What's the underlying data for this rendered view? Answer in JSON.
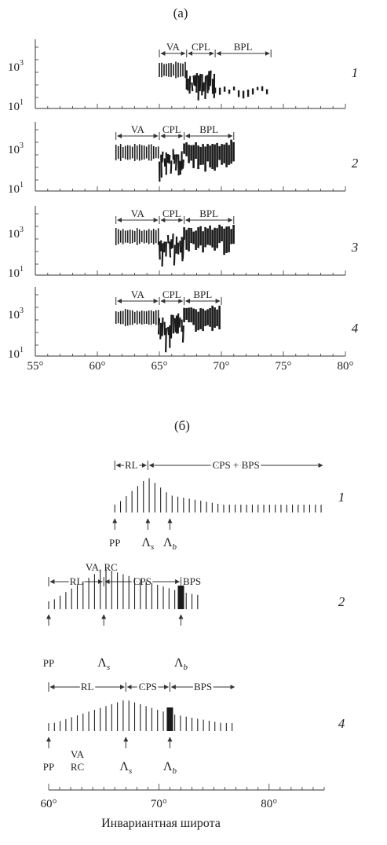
{
  "figure": {
    "panel_a": {
      "label": "(a)",
      "rows": [
        {
          "number": "1",
          "regions": [
            "VA",
            "CPL",
            "BPL"
          ]
        },
        {
          "number": "2",
          "regions": [
            "VA",
            "CPL",
            "BPL"
          ]
        },
        {
          "number": "3",
          "regions": [
            "VA",
            "CPL",
            "BPL"
          ]
        },
        {
          "number": "4",
          "regions": [
            "VA",
            "CPL",
            "BPL"
          ]
        }
      ],
      "y_tick_labels": [
        {
          "base": "10",
          "exp": "3"
        },
        {
          "base": "10",
          "exp": "1"
        }
      ],
      "x_ticks": [
        "55°",
        "60°",
        "65°",
        "70°",
        "75°",
        "80°"
      ]
    },
    "panel_b": {
      "label": "(б)",
      "rows": [
        {
          "number": "1",
          "top_labels": [
            "RL",
            "CPS + BPS"
          ],
          "markers": [
            "PP",
            "Λs",
            "Λb"
          ]
        },
        {
          "number": "2",
          "top_labels": [
            "VA, RC",
            "RL",
            "CPS",
            "BPS"
          ],
          "markers": [
            "PP",
            "Λs",
            "Λb"
          ]
        },
        {
          "number": "4",
          "top_labels": [
            "RL",
            "CPS",
            "BPS"
          ],
          "markers": [
            "PP",
            "VA",
            "RC",
            "Λs",
            "Λb"
          ]
        }
      ],
      "x_ticks": [
        "60°",
        "70°",
        "80°"
      ],
      "x_axis_label": "Инвариантная широта"
    }
  },
  "chart_data": [
    {
      "type": "other",
      "panel": "(a)",
      "description_source": "precipitation region boundaries by invariant latitude",
      "x_range": [
        55,
        80
      ],
      "y_scale": "log",
      "y_ticks": [
        "10^1",
        "10^3"
      ],
      "rows": [
        {
          "row": "1",
          "VA": [
            65,
            67.2
          ],
          "CPL": [
            67.2,
            69.5
          ],
          "BPL": [
            69.5,
            74
          ]
        },
        {
          "row": "2",
          "VA": [
            61.5,
            65
          ],
          "CPL": [
            65,
            67
          ],
          "BPL": [
            67,
            71
          ]
        },
        {
          "row": "3",
          "VA": [
            61.5,
            65
          ],
          "CPL": [
            65,
            67
          ],
          "BPL": [
            67,
            71
          ]
        },
        {
          "row": "4",
          "VA": [
            61.5,
            65
          ],
          "CPL": [
            65,
            67
          ],
          "BPL": [
            67,
            70
          ]
        }
      ]
    },
    {
      "type": "other",
      "panel": "(б)",
      "x_range": [
        60,
        85
      ],
      "xlabel": "Инвариантная широта",
      "rows": [
        {
          "row": "1",
          "PP": 66,
          "Lambda_s": 69,
          "Lambda_b": 71,
          "regions": {
            "RL": [
              66,
              69
            ],
            "CPS + BPS": [
              69,
              85
            ]
          }
        },
        {
          "row": "2",
          "PP": 60,
          "Lambda_s": 65,
          "Lambda_b": 72,
          "regions": {
            "RL": [
              60,
              65
            ],
            "CPS": [
              65,
              72
            ],
            "BPS": [
              72,
              74
            ]
          }
        },
        {
          "row": "4",
          "PP": 60,
          "Lambda_s": 67,
          "Lambda_b": 71,
          "regions": {
            "RL": [
              60,
              67
            ],
            "CPS": [
              67,
              71
            ],
            "BPS": [
              71,
              77
            ]
          }
        }
      ]
    }
  ]
}
